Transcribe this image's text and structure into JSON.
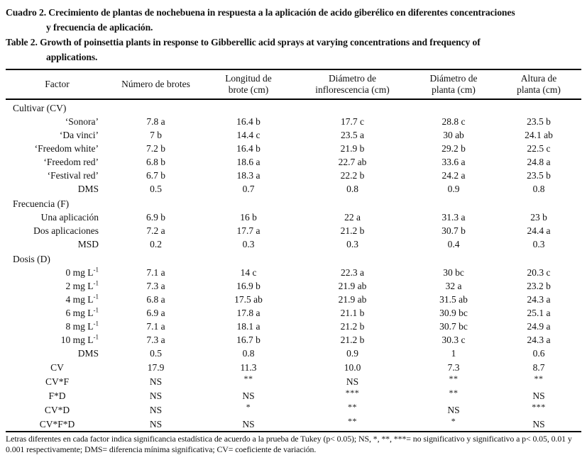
{
  "titles": {
    "es": [
      "Cuadro 2. Crecimiento de plantas de nochebuena in respuesta a la aplicación de acido giberélico en diferentes concentraciones",
      "y frecuencia de aplicación."
    ],
    "en": [
      "Table 2. Growth of poinsettia plants in response to Gibberellic acid sprays at varying concentrations and frequency of",
      "applications."
    ]
  },
  "table": {
    "columns": [
      [
        "Factor"
      ],
      [
        "Número de brotes"
      ],
      [
        "Longitud de",
        "brote (cm)"
      ],
      [
        "Diámetro de",
        "inflorescencia (cm)"
      ],
      [
        "Diámetro de",
        "planta (cm)"
      ],
      [
        "Altura de",
        "planta (cm)"
      ]
    ],
    "sections": [
      {
        "name": "Cultivar (CV)",
        "rows": [
          {
            "label": "‘Sonora’",
            "values": [
              "7.8 a",
              "16.4 b",
              "17.7 c",
              "28.8 c",
              "23.5 b"
            ]
          },
          {
            "label": "‘Da vinci’",
            "values": [
              "7 b",
              "14.4 c",
              "23.5 a",
              "30 ab",
              "24.1 ab"
            ]
          },
          {
            "label": "‘Freedom white’",
            "values": [
              "7.2 b",
              "16.4 b",
              "21.9 b",
              "29.2 b",
              "22.5 c"
            ]
          },
          {
            "label": "‘Freedom red’",
            "values": [
              "6.8 b",
              "18.6 a",
              "22.7 ab",
              "33.6 a",
              "24.8 a"
            ]
          },
          {
            "label": "‘Festival red’",
            "values": [
              "6.7 b",
              "18.3 a",
              "22.2 b",
              "24.2 a",
              "23.5 b"
            ]
          },
          {
            "label": "DMS",
            "values": [
              "0.5",
              "0.7",
              "0.8",
              "0.9",
              "0.8"
            ]
          }
        ]
      },
      {
        "name": "Frecuencia (F)",
        "rows": [
          {
            "label": "Una aplicación",
            "values": [
              "6.9 b",
              "16 b",
              "22 a",
              "31.3 a",
              "23 b"
            ]
          },
          {
            "label": "Dos aplicaciones",
            "values": [
              "7.2 a",
              "17.7 a",
              "21.2 b",
              "30.7 b",
              "24.4 a"
            ]
          },
          {
            "label": "MSD",
            "values": [
              "0.2",
              "0.3",
              "0.3",
              "0.4",
              "0.3"
            ]
          }
        ]
      },
      {
        "name": "Dosis (D)",
        "rows": [
          {
            "label": "0 mg L⁻¹",
            "values": [
              "7.1 a",
              "14 c",
              "22.3 a",
              "30 bc",
              "20.3 c"
            ]
          },
          {
            "label": "2 mg L⁻¹",
            "values": [
              "7.3 a",
              "16.9 b",
              "21.9 ab",
              "32 a",
              "23.2 b"
            ]
          },
          {
            "label": "4 mg L⁻¹",
            "values": [
              "6.8 a",
              "17.5 ab",
              "21.9 ab",
              "31.5 ab",
              "24.3 a"
            ]
          },
          {
            "label": "6 mg L⁻¹",
            "values": [
              "6.9 a",
              "17.8 a",
              "21.1 b",
              "30.9 bc",
              "25.1 a"
            ]
          },
          {
            "label": "8 mg L⁻¹",
            "values": [
              "7.1 a",
              "18.1 a",
              "21.2 b",
              "30.7 bc",
              "24.9 a"
            ]
          },
          {
            "label": "10 mg L⁻¹",
            "values": [
              "7.3 a",
              "16.7 b",
              "21.2 b",
              "30.3 c",
              "24.3 a"
            ]
          },
          {
            "label": "DMS",
            "values": [
              "0.5",
              "0.8",
              "0.9",
              "1",
              "0.6"
            ]
          }
        ]
      }
    ],
    "stats": [
      {
        "label": "CV",
        "values": [
          "17.9",
          "11.3",
          "10.0",
          "7.3",
          "8.7"
        ]
      },
      {
        "label": "CV*F",
        "values": [
          "NS",
          "**",
          "NS",
          "**",
          "**"
        ]
      },
      {
        "label": "F*D",
        "values": [
          "NS",
          "NS",
          "***",
          "**",
          "NS"
        ]
      },
      {
        "label": "CV*D",
        "values": [
          "NS",
          "*",
          "**",
          "NS",
          "***"
        ]
      },
      {
        "label": "CV*F*D",
        "values": [
          "NS",
          "NS",
          "**",
          "*",
          "NS"
        ]
      }
    ]
  },
  "footnote": [
    "Letras diferentes en cada factor indica significancia estadística de acuerdo a la prueba de Tukey (p< 0.05); NS, *, **, ***= no significativo y significativo a p< 0.05, 0.01 y",
    "0.001 respectivamente; DMS= diferencia mínima significativa; CV= coeficiente de variación."
  ]
}
